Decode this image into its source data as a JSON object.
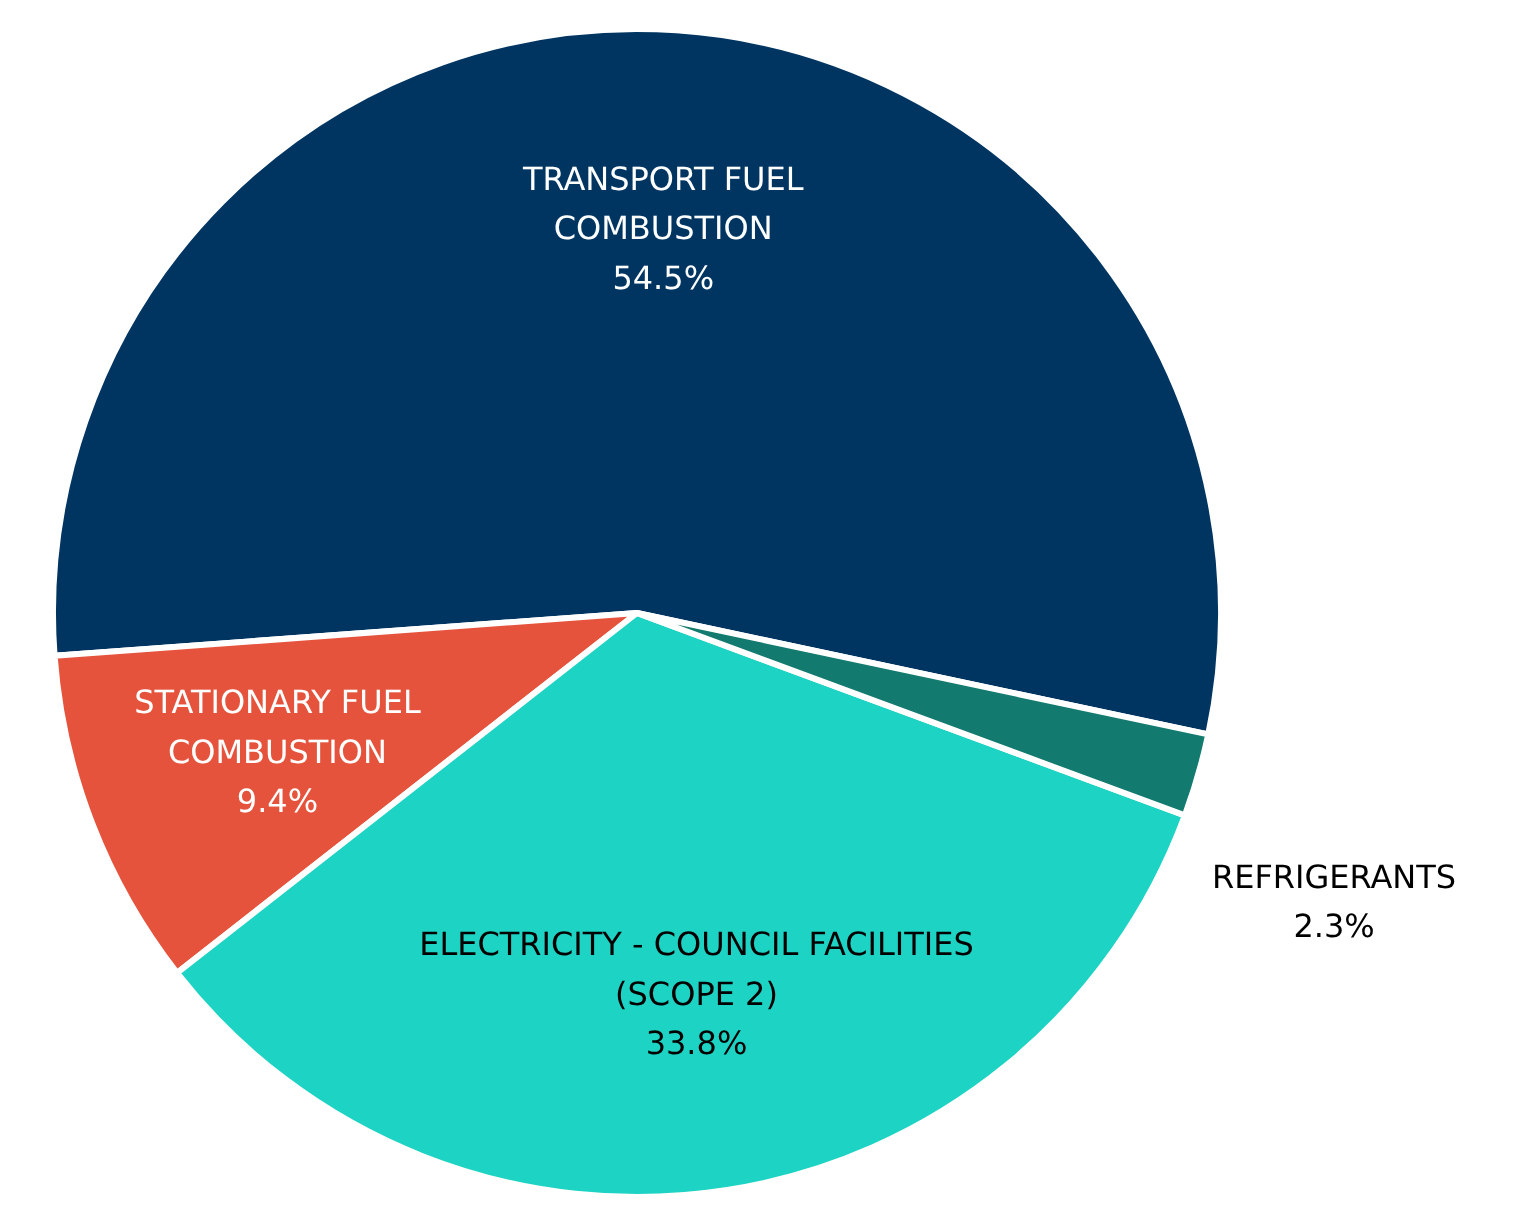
{
  "chart_data": {
    "type": "pie",
    "categories": [
      "TRANSPORT FUEL\nCOMBUSTION",
      "STATIONARY FUEL\nCOMBUSTION",
      "ELECTRICITY - COUNCIL FACILITIES\n(SCOPE 2)",
      "REFRIGERANTS"
    ],
    "values": [
      54.5,
      9.4,
      33.8,
      2.3
    ],
    "value_labels": [
      "54.5%",
      "9.4%",
      "33.8%",
      "2.3%"
    ],
    "colors": [
      "#003562",
      "#e5533d",
      "#1dd3c4",
      "#127a6e"
    ]
  }
}
